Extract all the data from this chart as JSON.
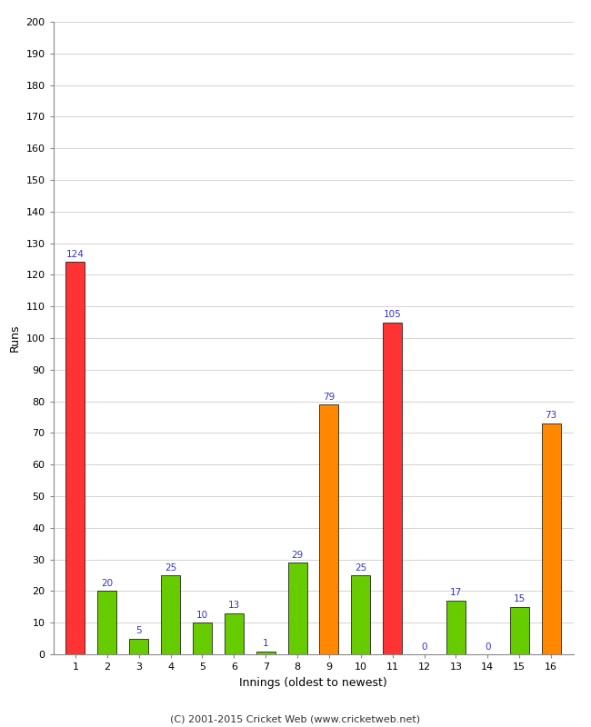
{
  "innings": [
    1,
    2,
    3,
    4,
    5,
    6,
    7,
    8,
    9,
    10,
    11,
    12,
    13,
    14,
    15,
    16
  ],
  "values": [
    124,
    20,
    5,
    25,
    10,
    13,
    1,
    29,
    79,
    25,
    105,
    0,
    17,
    0,
    15,
    73
  ],
  "colors": [
    "#ff3333",
    "#66cc00",
    "#66cc00",
    "#66cc00",
    "#66cc00",
    "#66cc00",
    "#66cc00",
    "#66cc00",
    "#ff8800",
    "#66cc00",
    "#ff3333",
    "#66cc00",
    "#66cc00",
    "#66cc00",
    "#66cc00",
    "#ff8800"
  ],
  "xlabel": "Innings (oldest to newest)",
  "ylabel": "Runs",
  "ylim": [
    0,
    200
  ],
  "yticks": [
    0,
    10,
    20,
    30,
    40,
    50,
    60,
    70,
    80,
    90,
    100,
    110,
    120,
    130,
    140,
    150,
    160,
    170,
    180,
    190,
    200
  ],
  "label_color": "#3333cc",
  "label_fontsize": 7.5,
  "axis_label_fontsize": 9,
  "tick_fontsize": 8,
  "background_color": "#ffffff",
  "footer": "(C) 2001-2015 Cricket Web (www.cricketweb.net)",
  "footer_fontsize": 8,
  "bar_edge_color": "#000000",
  "bar_linewidth": 0.5
}
